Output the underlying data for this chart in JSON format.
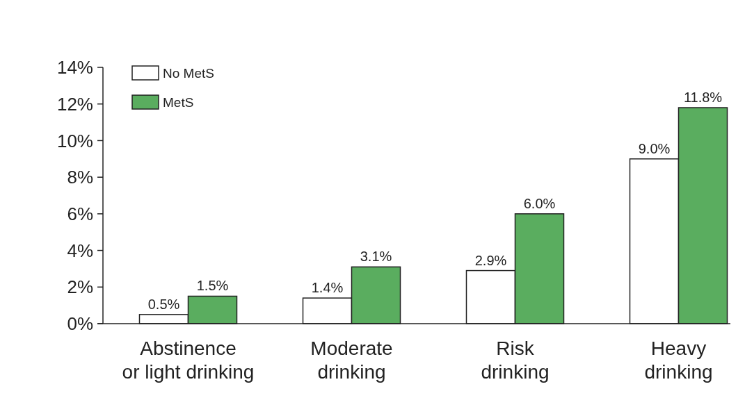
{
  "chart_data": {
    "type": "bar",
    "categories": [
      "Abstinence\nor light drinking",
      "Moderate\ndrinking",
      "Risk\ndrinking",
      "Heavy\ndrinking"
    ],
    "series": [
      {
        "name": "No MetS",
        "color": "#ffffff",
        "values": [
          0.5,
          1.4,
          2.9,
          9.0
        ],
        "value_labels": [
          "0.5%",
          "1.4%",
          "2.9%",
          "9.0%"
        ]
      },
      {
        "name": "MetS",
        "color": "#5aad5f",
        "values": [
          1.5,
          3.1,
          6.0,
          11.8
        ],
        "value_labels": [
          "1.5%",
          "3.1%",
          "6.0%",
          "11.8%"
        ]
      }
    ],
    "ylim": [
      0,
      14
    ],
    "yticks": [
      {
        "value": 0,
        "label": "0%"
      },
      {
        "value": 2,
        "label": "2%"
      },
      {
        "value": 4,
        "label": "4%"
      },
      {
        "value": 6,
        "label": "6%"
      },
      {
        "value": 8,
        "label": "8%"
      },
      {
        "value": 10,
        "label": "10%"
      },
      {
        "value": 12,
        "label": "12%"
      },
      {
        "value": 14,
        "label": "14%"
      }
    ],
    "grid": false,
    "legend": "top left"
  }
}
